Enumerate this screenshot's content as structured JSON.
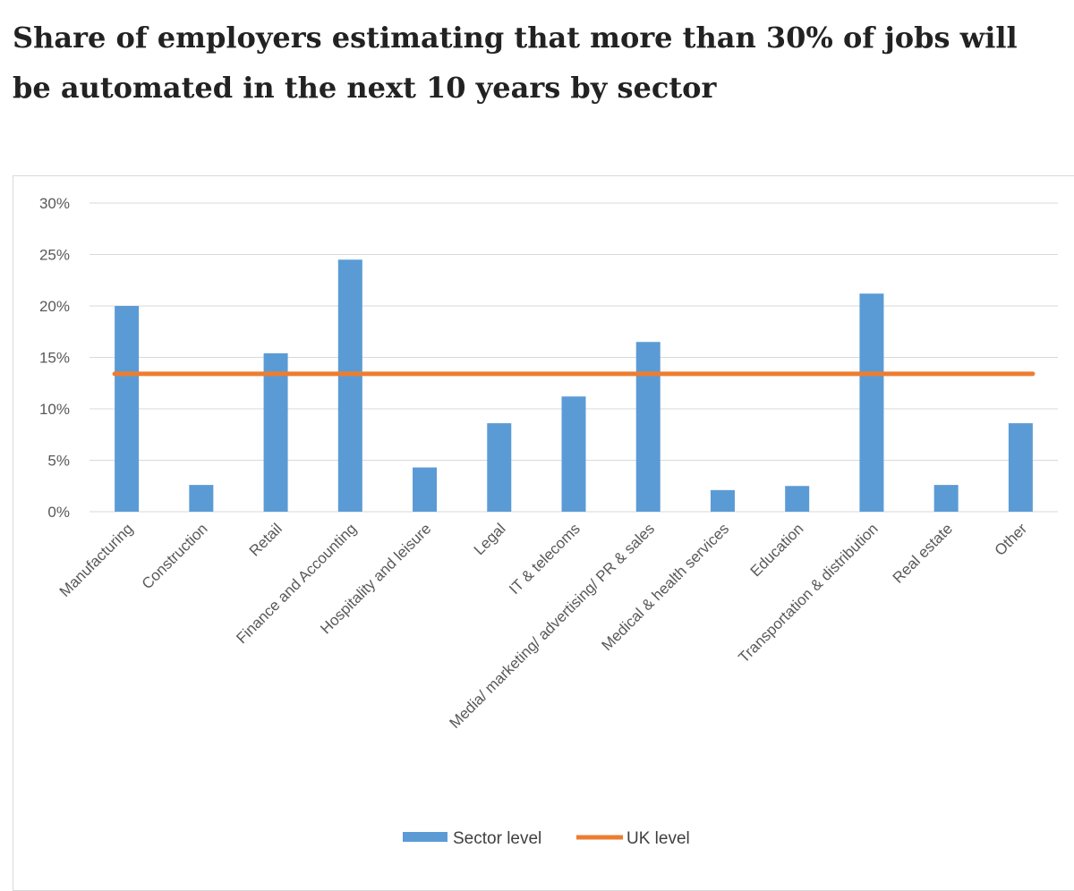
{
  "page": {
    "title": "Share of employers estimating that more than 30% of jobs will be automated in the next 10 years by sector"
  },
  "chart_data": {
    "type": "bar",
    "title": "Share of employers estimating that more than 30% of jobs will be automated in the next 10 years by sector",
    "xlabel": "",
    "ylabel": "",
    "ylim": [
      0,
      30
    ],
    "y_ticks": [
      "0%",
      "5%",
      "10%",
      "15%",
      "20%",
      "25%",
      "30%"
    ],
    "grid": true,
    "legend_position": "bottom",
    "categories": [
      "Manufacturing",
      "Construction",
      "Retail",
      "Finance and Accounting",
      "Hospitality and leisure",
      "Legal",
      "IT & telecoms",
      "Media/ marketing/ advertising/ PR & sales",
      "Medical & health services",
      "Education",
      "Transportation & distribution",
      "Real estate",
      "Other"
    ],
    "series": [
      {
        "name": "Sector level",
        "kind": "bar",
        "color": "#5b9bd5",
        "values": [
          20,
          2.6,
          15.4,
          24.5,
          4.3,
          8.6,
          11.2,
          16.5,
          2.1,
          2.5,
          21.2,
          2.6,
          8.6
        ]
      },
      {
        "name": "UK level",
        "kind": "line",
        "color": "#ed7d31",
        "value": 13.4
      }
    ]
  }
}
